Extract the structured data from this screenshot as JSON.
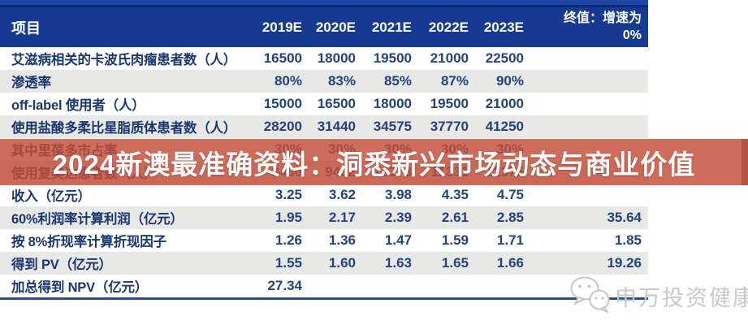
{
  "table": {
    "header": {
      "label": "项目",
      "years": [
        "2019E",
        "2020E",
        "2021E",
        "2022E",
        "2023E"
      ],
      "terminal_line1": "终值：增速为",
      "terminal_line2": "0%"
    },
    "rows": [
      {
        "label": "艾滋病相关的卡波氏肉瘤患者数（人）",
        "values": [
          "16500",
          "18000",
          "19500",
          "21000",
          "22500"
        ],
        "terminal": ""
      },
      {
        "label": "渗透率",
        "values": [
          "80%",
          "83%",
          "85%",
          "87%",
          "90%"
        ],
        "terminal": ""
      },
      {
        "label": "off-label 使用者（人）",
        "values": [
          "15000",
          "16500",
          "18000",
          "19500",
          "21000"
        ],
        "terminal": ""
      },
      {
        "label": "使用盐酸多柔比星脂质体患者数（人）",
        "values": [
          "28200",
          "31440",
          "34575",
          "37770",
          "41250"
        ],
        "terminal": ""
      },
      {
        "label": "其中里葆多市占率",
        "values": [
          "30%",
          "30%",
          "30%",
          "30%",
          "30%"
        ],
        "terminal": ""
      },
      {
        "label": "使用复美达患者数（人）",
        "values": [
          "8460",
          "9432",
          "10373",
          "11331",
          "12375"
        ],
        "terminal": ""
      },
      {
        "label": "收入（亿元）",
        "values": [
          "3.25",
          "3.62",
          "3.98",
          "4.35",
          "4.75"
        ],
        "terminal": ""
      },
      {
        "label": "60%利润率计算利润（亿元）",
        "values": [
          "1.95",
          "2.17",
          "2.39",
          "2.61",
          "2.85"
        ],
        "terminal": "35.64"
      },
      {
        "label": "按 8%折现率计算折现因子",
        "values": [
          "1.26",
          "1.36",
          "1.47",
          "1.59",
          "1.71"
        ],
        "terminal": "1.85"
      },
      {
        "label": "得到 PV（亿元）",
        "values": [
          "1.55",
          "1.60",
          "1.63",
          "1.65",
          "1.66"
        ],
        "terminal": "19.26"
      },
      {
        "label": "加总得到 NPV（亿元）",
        "values": [
          "27.34",
          "",
          "",
          "",
          ""
        ],
        "terminal": ""
      }
    ]
  },
  "overlay_banner": {
    "text": "2024新澳最准确资料：洞悉新兴市场动态与商业价值",
    "background_color": "#c64d38",
    "text_color": "#ffffff"
  },
  "watermark": {
    "icon": "wechat-icon",
    "text": "申万投资健康",
    "color": "#c9c9c9"
  },
  "colors": {
    "header_background": "#163a92",
    "header_top_stripe": "#1f47a6",
    "header_dark_line": "#0b2c74",
    "row_shade": "#e8e8e6",
    "label_text": "#1c3770",
    "number_text": "#25427f",
    "bottom_rule": "#2b4d8c"
  }
}
